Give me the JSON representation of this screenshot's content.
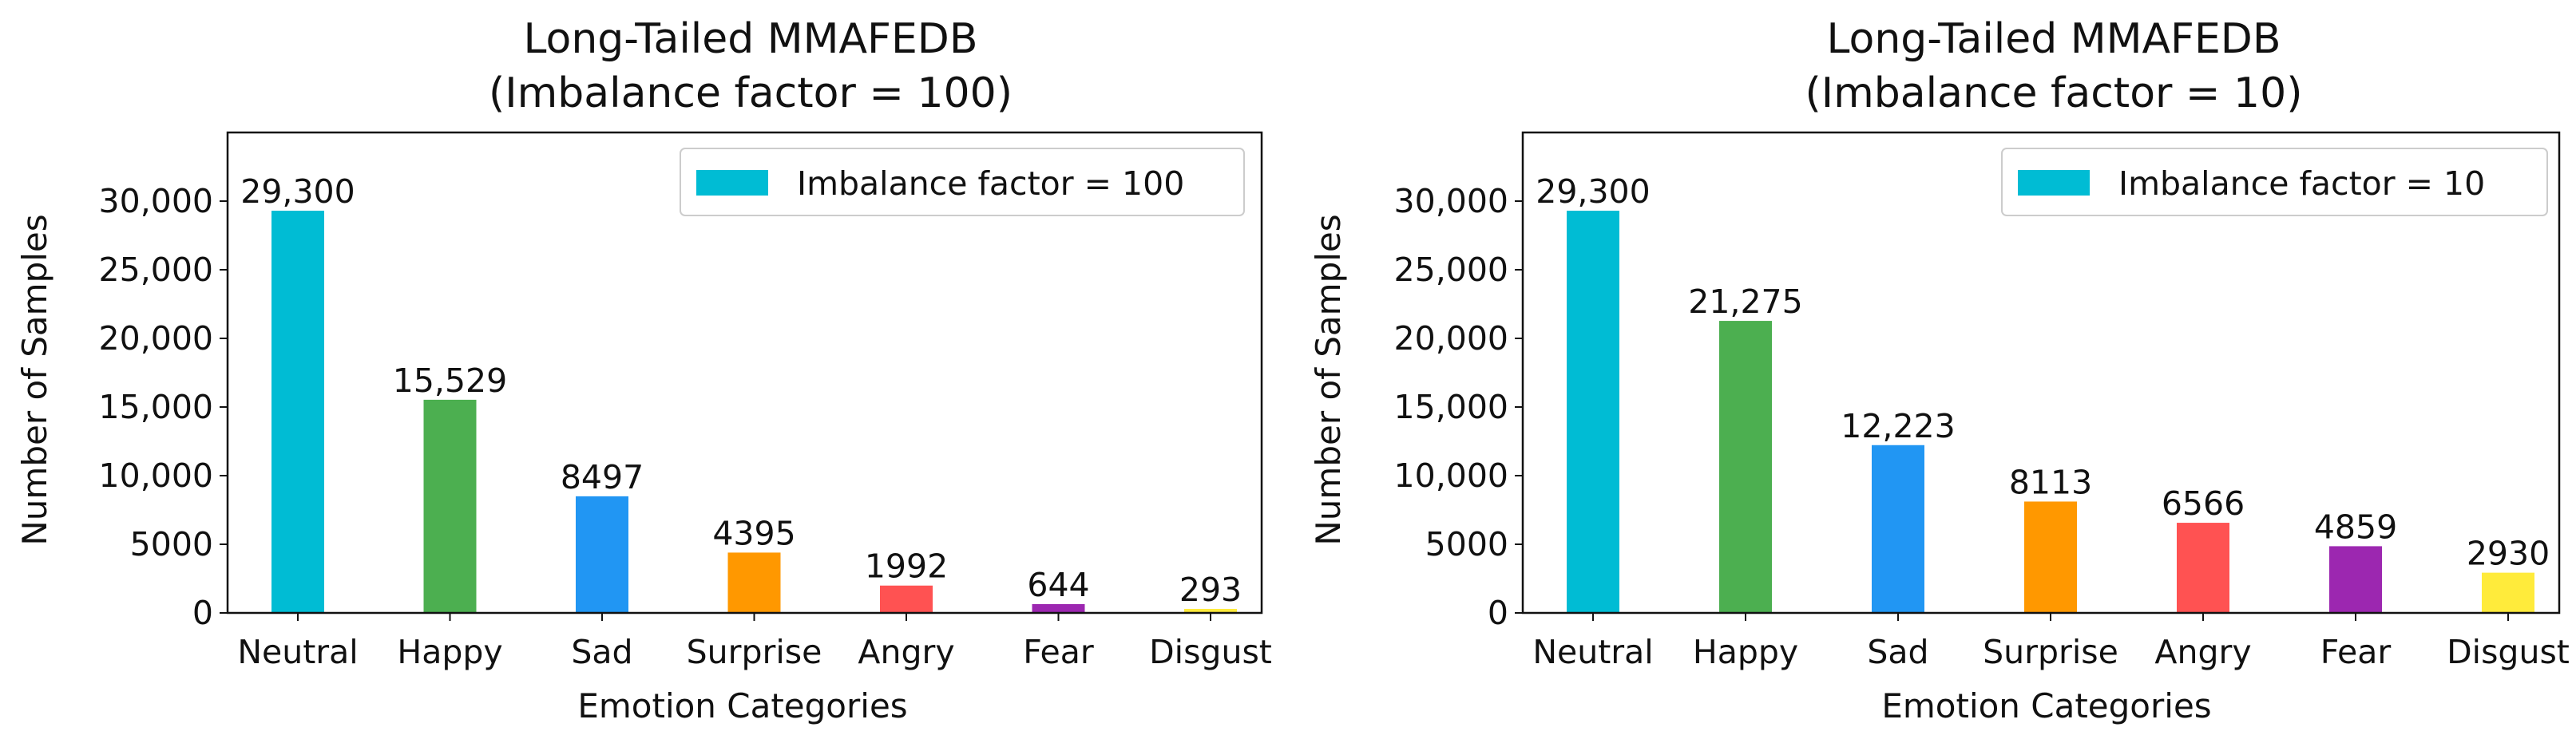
{
  "chart_data": [
    {
      "type": "bar",
      "title": "Long-Tailed MMAFEDB",
      "subtitle": "(Imbalance factor = 100)",
      "xlabel": "Emotion Categories",
      "ylabel": "Number of Samples",
      "categories": [
        "Neutral",
        "Happy",
        "Sad",
        "Surprise",
        "Angry",
        "Fear",
        "Disgust"
      ],
      "series": [
        {
          "name": "Imbalance factor = 100",
          "values": [
            29300,
            15529,
            8497,
            4395,
            1992,
            644,
            293
          ]
        }
      ],
      "value_labels": [
        "29,300",
        "15,529",
        "8497",
        "4395",
        "1992",
        "644",
        "293"
      ],
      "colors": [
        "#00BCD4",
        "#4CAF50",
        "#2196F3",
        "#FF9800",
        "#FF5252",
        "#9C27B0",
        "#FFEB3B"
      ],
      "legend_color": "#00BCD4",
      "ylim": [
        0,
        35000
      ],
      "yticks": [
        0,
        5000,
        10000,
        15000,
        20000,
        25000,
        30000
      ],
      "ytick_labels": [
        "0",
        "5000",
        "10,000",
        "15,000",
        "20,000",
        "25,000",
        "30,000"
      ],
      "legend_position": "top-right",
      "grid": false
    },
    {
      "type": "bar",
      "title": "Long-Tailed MMAFEDB",
      "subtitle": "(Imbalance factor = 10)",
      "xlabel": "Emotion Categories",
      "ylabel": "Number of Samples",
      "categories": [
        "Neutral",
        "Happy",
        "Sad",
        "Surprise",
        "Angry",
        "Fear",
        "Disgust"
      ],
      "series": [
        {
          "name": "Imbalance factor = 10",
          "values": [
            29300,
            21275,
            12223,
            8113,
            6566,
            4859,
            2930
          ]
        }
      ],
      "value_labels": [
        "29,300",
        "21,275",
        "12,223",
        "8113",
        "6566",
        "4859",
        "2930"
      ],
      "colors": [
        "#00BCD4",
        "#4CAF50",
        "#2196F3",
        "#FF9800",
        "#FF5252",
        "#9C27B0",
        "#FFEB3B"
      ],
      "legend_color": "#00BCD4",
      "ylim": [
        0,
        35000
      ],
      "yticks": [
        0,
        5000,
        10000,
        15000,
        20000,
        25000,
        30000
      ],
      "ytick_labels": [
        "0",
        "5000",
        "10,000",
        "15,000",
        "20,000",
        "25,000",
        "30,000"
      ],
      "legend_position": "top-right",
      "grid": false
    }
  ]
}
